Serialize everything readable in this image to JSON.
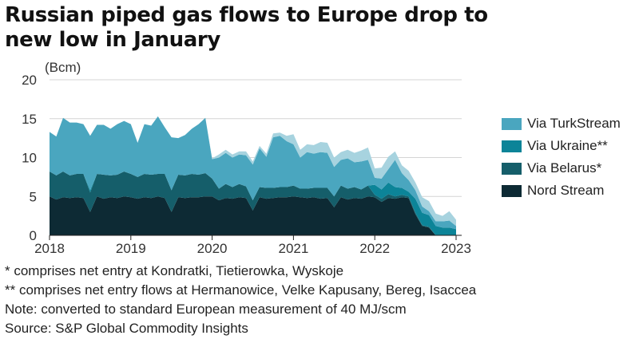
{
  "title": "Russian piped gas flows to Europe drop to new low in January",
  "unit_label": "(Bcm)",
  "notes": [
    "* comprises net entry at Kondratki, Tietierowka, Wyskoje",
    "** comprises net entry flows at Hermanowice, Velke Kapusany, Bereg, Isaccea",
    "Note: converted to standard European measurement of 40 MJ/scm",
    "Source: S&P Global Commodity Insights"
  ],
  "chart_data": {
    "type": "area",
    "stacked": true,
    "x_start": "2018-01",
    "x_end": "2023-01",
    "x_step": "month",
    "xticks": [
      "2018",
      "2019",
      "2020",
      "2021",
      "2022",
      "2023"
    ],
    "yticks": [
      0,
      5,
      10,
      15,
      20
    ],
    "ylim": [
      0,
      20
    ],
    "grid": "horizontal",
    "legend_position": "right",
    "series": [
      {
        "name": "Nord Stream",
        "color": "#0d2a34",
        "values": [
          5.0,
          4.6,
          4.9,
          4.8,
          4.9,
          4.8,
          3.0,
          5.0,
          4.7,
          4.9,
          4.8,
          5.0,
          4.9,
          4.7,
          4.9,
          4.8,
          5.0,
          4.8,
          3.0,
          4.9,
          4.8,
          4.9,
          4.9,
          5.0,
          5.0,
          4.5,
          4.8,
          4.7,
          4.9,
          4.8,
          3.2,
          4.9,
          4.7,
          4.8,
          4.9,
          4.9,
          5.0,
          4.9,
          4.8,
          4.9,
          4.7,
          4.8,
          3.6,
          4.9,
          4.6,
          4.8,
          4.7,
          5.0,
          4.9,
          4.3,
          4.8,
          4.7,
          4.9,
          4.8,
          2.7,
          1.2,
          1.0,
          0,
          0,
          0,
          0
        ]
      },
      {
        "name": "Via Belarus*",
        "color": "#155e6a",
        "values": [
          3.2,
          3.1,
          3.3,
          2.9,
          3.0,
          3.1,
          2.5,
          2.9,
          3.1,
          2.8,
          3.0,
          3.2,
          3.0,
          2.8,
          3.0,
          3.0,
          2.9,
          3.1,
          2.8,
          2.9,
          2.9,
          3.0,
          2.9,
          3.0,
          2.3,
          1.5,
          1.8,
          1.5,
          1.7,
          1.5,
          1.3,
          1.3,
          1.4,
          1.3,
          1.3,
          1.3,
          1.4,
          1.1,
          1.2,
          1.2,
          1.4,
          1.3,
          1.4,
          1.5,
          1.4,
          1.4,
          1.2,
          1.4,
          0.3,
          0.4,
          0.5,
          0.3,
          0.3,
          0.2,
          0.2,
          0.1,
          0.1,
          0,
          0,
          0,
          0
        ]
      },
      {
        "name": "Via Ukraine**",
        "color": "#0c8498",
        "values": [
          0,
          0,
          0,
          0,
          0,
          0,
          0.3,
          0,
          0,
          0,
          0,
          0,
          0,
          0,
          0,
          0,
          0,
          0,
          0,
          0,
          0,
          0,
          0,
          0,
          0,
          0,
          0,
          0,
          0,
          0,
          0,
          0,
          0,
          0,
          0,
          0,
          0,
          0,
          0,
          0,
          0,
          0,
          0,
          0,
          0,
          0,
          0,
          0,
          1.3,
          1.2,
          1.5,
          1.2,
          0.9,
          0.6,
          1.8,
          1.6,
          1.5,
          1.2,
          1.0,
          1.0,
          0.8
        ]
      },
      {
        "name": "Via TurkStream",
        "color": "#4aa6bf",
        "values": [
          5.1,
          5.0,
          6.9,
          6.8,
          6.6,
          6.4,
          7.0,
          6.3,
          6.4,
          6.0,
          6.5,
          6.5,
          6.4,
          4.4,
          6.4,
          6.3,
          7.4,
          6.0,
          6.8,
          4.7,
          5.2,
          5.8,
          6.5,
          7.1,
          2.5,
          4.0,
          4.0,
          3.8,
          3.8,
          4.0,
          4.6,
          5.0,
          4.0,
          6.5,
          6.6,
          5.9,
          5.3,
          4.0,
          4.7,
          4.4,
          4.6,
          4.5,
          3.8,
          3.3,
          3.9,
          3.2,
          3.6,
          3.3,
          0.9,
          1.4,
          1.7,
          3.5,
          1.9,
          1.5,
          1.1,
          0.8,
          0.5,
          0.6,
          0.8,
          0.9,
          0.4
        ]
      },
      {
        "name": "",
        "color": "#a7d3df",
        "values": [
          0,
          0,
          0,
          0,
          0,
          0,
          0,
          0,
          0,
          0,
          0,
          0,
          0,
          0,
          0,
          0,
          0,
          0,
          0,
          0,
          0,
          0,
          0,
          0,
          0.1,
          0.4,
          0.4,
          0.4,
          0.4,
          0.5,
          0.4,
          0.3,
          0.4,
          0.5,
          0.4,
          0.7,
          1.3,
          1.0,
          1.0,
          1.1,
          1.3,
          1.3,
          1.2,
          1.0,
          1.1,
          1.2,
          1.4,
          1.6,
          1.2,
          1.4,
          1.6,
          1.1,
          1.0,
          1.2,
          1.0,
          1.2,
          1.3,
          1.0,
          0.7,
          1.2,
          0.8
        ]
      }
    ]
  }
}
